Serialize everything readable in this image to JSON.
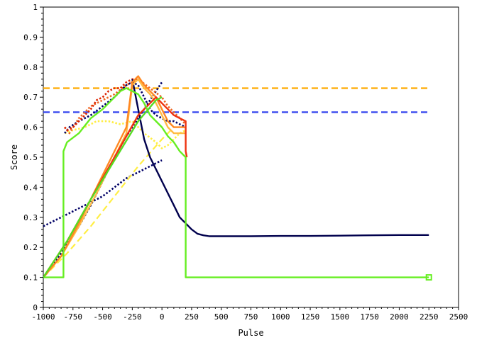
{
  "chart_data": {
    "type": "line",
    "title": "",
    "xlabel": "Pulse",
    "ylabel": "Score",
    "xlim": [
      -1000,
      2500
    ],
    "ylim": [
      0,
      1
    ],
    "x_ticks": [
      "-1000",
      "-750",
      "-500",
      "-250",
      "0",
      "250",
      "500",
      "750",
      "1000",
      "1250",
      "1500",
      "1750",
      "2000",
      "2250",
      "2500"
    ],
    "y_ticks": [
      "0",
      "0.1",
      "0.2",
      "0.3",
      "0.4",
      "0.5",
      "0.6",
      "0.7",
      "0.8",
      "0.9",
      "1"
    ],
    "grid": false,
    "legend": "none",
    "series": [
      {
        "color": "#ffaa00",
        "style": "dashed",
        "x": [
          -1000,
          2250
        ],
        "y": [
          0.73,
          0.73
        ]
      },
      {
        "color": "#3344ee",
        "style": "dashed",
        "x": [
          -1000,
          2250
        ],
        "y": [
          0.65,
          0.65
        ]
      },
      {
        "color": "#000066",
        "style": "dotted",
        "x": [
          -1000,
          -900,
          -800,
          -700,
          -600,
          -500,
          -400,
          -300,
          -200,
          -100,
          0
        ],
        "y": [
          0.27,
          0.29,
          0.31,
          0.33,
          0.35,
          0.37,
          0.4,
          0.43,
          0.45,
          0.47,
          0.49
        ]
      },
      {
        "color": "#000066",
        "style": "dotted",
        "x": [
          -1000,
          -900,
          -800,
          -700,
          -600,
          -500,
          -400,
          -300,
          -200,
          -100,
          0
        ],
        "y": [
          0.1,
          0.15,
          0.21,
          0.27,
          0.34,
          0.42,
          0.5,
          0.57,
          0.63,
          0.69,
          0.75
        ]
      },
      {
        "color": "#ffee44",
        "style": "dashed",
        "x": [
          -1000,
          -800,
          -600,
          -400,
          -200,
          0,
          100
        ],
        "y": [
          0.1,
          0.18,
          0.27,
          0.37,
          0.47,
          0.56,
          0.6
        ]
      },
      {
        "color": "#ffee44",
        "style": "dotted",
        "x": [
          -820,
          -750,
          -650,
          -550,
          -450,
          -350,
          -250,
          -150,
          -50,
          0,
          50,
          100,
          150,
          200
        ],
        "y": [
          0.58,
          0.59,
          0.6,
          0.62,
          0.62,
          0.61,
          0.62,
          0.58,
          0.55,
          0.53,
          0.54,
          0.56,
          0.58,
          0.59
        ]
      },
      {
        "color": "#ee6622",
        "style": "dotted",
        "x": [
          -820,
          -780,
          -700,
          -600,
          -500,
          -400,
          -300,
          -200,
          -100,
          0,
          50,
          100,
          150,
          200
        ],
        "y": [
          0.6,
          0.58,
          0.63,
          0.67,
          0.69,
          0.71,
          0.74,
          0.76,
          0.73,
          0.7,
          0.67,
          0.65,
          0.63,
          0.61
        ]
      },
      {
        "color": "#000066",
        "style": "dotted",
        "x": [
          -820,
          -780,
          -700,
          -600,
          -500,
          -400,
          -350,
          -300,
          -250,
          -200,
          -150,
          -100,
          -50,
          0,
          50,
          100,
          150,
          200
        ],
        "y": [
          0.58,
          0.6,
          0.62,
          0.64,
          0.67,
          0.7,
          0.72,
          0.74,
          0.75,
          0.74,
          0.7,
          0.66,
          0.64,
          0.63,
          0.62,
          0.62,
          0.61,
          0.6
        ]
      },
      {
        "color": "#dd2200",
        "style": "dotted",
        "x": [
          -820,
          -800,
          -750,
          -700,
          -650,
          -600,
          -550,
          -500,
          -450,
          -400,
          -350,
          -300,
          -250,
          -200
        ],
        "y": [
          0.6,
          0.59,
          0.6,
          0.62,
          0.64,
          0.66,
          0.69,
          0.7,
          0.72,
          0.73,
          0.73,
          0.75,
          0.76,
          0.76
        ]
      },
      {
        "color": "#00004d",
        "style": "solid",
        "x": [
          -250,
          -200,
          -150,
          -100,
          -50,
          0,
          50,
          100,
          150,
          200,
          250,
          300,
          350,
          400,
          500,
          750,
          1000,
          1250,
          1500,
          1750,
          2000,
          2250
        ],
        "y": [
          0.76,
          0.66,
          0.56,
          0.5,
          0.46,
          0.42,
          0.38,
          0.34,
          0.3,
          0.28,
          0.26,
          0.245,
          0.24,
          0.237,
          0.237,
          0.237,
          0.238,
          0.238,
          0.239,
          0.24,
          0.241,
          0.241
        ]
      },
      {
        "color": "#ffbb44",
        "style": "solid",
        "x": [
          -1000,
          -850,
          -700,
          -550,
          -400,
          -300,
          -250,
          -200,
          -150,
          -100,
          -50,
          0,
          50,
          100,
          150,
          200
        ],
        "y": [
          0.1,
          0.17,
          0.27,
          0.38,
          0.5,
          0.58,
          0.74,
          0.76,
          0.73,
          0.71,
          0.68,
          0.64,
          0.6,
          0.58,
          0.58,
          0.58
        ]
      },
      {
        "color": "#ff8822",
        "style": "solid",
        "x": [
          -1000,
          -850,
          -700,
          -550,
          -400,
          -300,
          -250,
          -200,
          -150,
          -100,
          -50,
          0,
          50,
          100,
          150,
          200
        ],
        "y": [
          0.1,
          0.17,
          0.28,
          0.4,
          0.52,
          0.6,
          0.75,
          0.77,
          0.74,
          0.72,
          0.7,
          0.66,
          0.62,
          0.6,
          0.6,
          0.6
        ]
      },
      {
        "color": "#ee3311",
        "style": "solid",
        "x": [
          -1000,
          -800,
          -600,
          -400,
          -200,
          -50,
          0,
          50,
          100,
          150,
          200,
          200,
          210
        ],
        "y": [
          0.1,
          0.22,
          0.36,
          0.5,
          0.64,
          0.7,
          0.68,
          0.66,
          0.64,
          0.63,
          0.62,
          0.52,
          0.5
        ]
      },
      {
        "color": "#66ee22",
        "style": "solid",
        "x": [
          -1000,
          -830,
          -830,
          -800,
          -700,
          -600,
          -500,
          -400,
          -350,
          -300,
          -250,
          -200,
          -150,
          -100,
          -50,
          0,
          50,
          100,
          150,
          200,
          200,
          250,
          2250
        ],
        "y": [
          0.1,
          0.1,
          0.52,
          0.55,
          0.58,
          0.63,
          0.66,
          0.7,
          0.72,
          0.73,
          0.72,
          0.71,
          0.68,
          0.64,
          0.62,
          0.6,
          0.57,
          0.55,
          0.52,
          0.5,
          0.1,
          0.1,
          0.1
        ]
      },
      {
        "color": "#55dd22",
        "style": "solid",
        "x": [
          -1000,
          -800,
          -600,
          -400,
          -200,
          -50,
          0
        ],
        "y": [
          0.1,
          0.22,
          0.36,
          0.49,
          0.62,
          0.69,
          0.7
        ]
      }
    ],
    "end_marker": {
      "color": "#66ee22",
      "x": 2250,
      "y": 0.1
    }
  }
}
